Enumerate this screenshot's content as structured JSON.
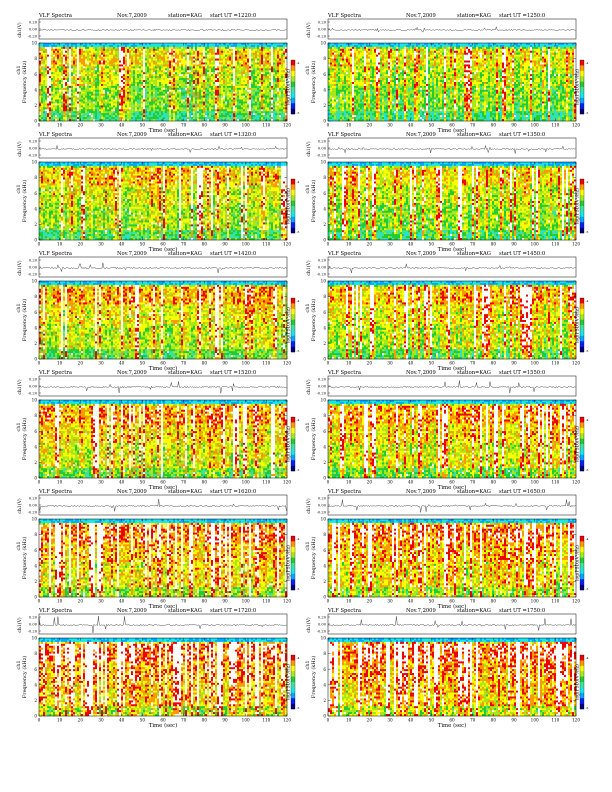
{
  "chart_data": [
    {
      "type": "heatmap",
      "title": "VLF Spectra",
      "date": "Nov.7,2009",
      "station": "station=KAG",
      "start": "start  UT  =1220:0",
      "waveform_ylabel": "ch1(V)",
      "waveform_ticks": [
        "0.20",
        "0.00",
        "-0.20"
      ],
      "ylabel": "Frequency (kHz)",
      "ylabel_prefix": "ch1",
      "ylim": [
        0,
        10
      ],
      "yticks": [
        0,
        2,
        4,
        6,
        8,
        10
      ],
      "xlabel": "Time (sec)",
      "xlim": [
        0,
        120
      ],
      "xticks": [
        0,
        10,
        20,
        30,
        40,
        50,
        60,
        70,
        80,
        90,
        100,
        110,
        120
      ],
      "colorbar_label": "log(PSD)(V²/Hz)",
      "colorbar_ticks": [
        "-4",
        "-5"
      ]
    },
    {
      "type": "heatmap",
      "title": "VLF Spectra",
      "date": "Nov.7,2009",
      "station": "station=KAG",
      "start": "start  UT  =1250:0",
      "waveform_ylabel": "ch1(V)",
      "waveform_ticks": [
        "0.20",
        "0.00",
        "-0.20"
      ],
      "ylabel": "Frequency (kHz)",
      "ylabel_prefix": "ch1",
      "ylim": [
        0,
        10
      ],
      "yticks": [
        0,
        2,
        4,
        6,
        8,
        10
      ],
      "xlabel": "Time (sec)",
      "xlim": [
        0,
        120
      ],
      "xticks": [
        0,
        10,
        20,
        30,
        40,
        50,
        60,
        70,
        80,
        90,
        100,
        110,
        120
      ],
      "colorbar_label": "log(PSD)(V²/Hz)",
      "colorbar_ticks": [
        "-4",
        "-5"
      ]
    },
    {
      "type": "heatmap",
      "title": "VLF Spectra",
      "date": "Nov.7,2009",
      "station": "station=KAG",
      "start": "start  UT  =1320:0",
      "waveform_ylabel": "ch1(V)",
      "waveform_ticks": [
        "0.20",
        "0.00",
        "-0.20"
      ],
      "ylabel": "Frequency (kHz)",
      "ylabel_prefix": "ch1",
      "ylim": [
        0,
        10
      ],
      "yticks": [
        0,
        2,
        4,
        6,
        8,
        10
      ],
      "xlabel": "Time (sec)",
      "xlim": [
        0,
        120
      ],
      "xticks": [
        0,
        10,
        20,
        30,
        40,
        50,
        60,
        70,
        80,
        90,
        100,
        110,
        120
      ],
      "colorbar_label": "log(PSD)(V²/Hz)",
      "colorbar_ticks": [
        "-4",
        "-5"
      ]
    },
    {
      "type": "heatmap",
      "title": "VLF Spectra",
      "date": "Nov.7,2009",
      "station": "station=KAG",
      "start": "start  UT  =1350:0",
      "waveform_ylabel": "ch1(V)",
      "waveform_ticks": [
        "0.20",
        "0.00",
        "-0.20"
      ],
      "ylabel": "Frequency (kHz)",
      "ylabel_prefix": "ch1",
      "ylim": [
        0,
        10
      ],
      "yticks": [
        0,
        2,
        4,
        6,
        8,
        10
      ],
      "xlabel": "Time (sec)",
      "xlim": [
        0,
        120
      ],
      "xticks": [
        0,
        10,
        20,
        30,
        40,
        50,
        60,
        70,
        80,
        90,
        100,
        110,
        120
      ],
      "colorbar_label": "log(PSD)(V²/Hz)",
      "colorbar_ticks": [
        "-4",
        "-5"
      ]
    },
    {
      "type": "heatmap",
      "title": "VLF Spectra",
      "date": "Nov.7,2009",
      "station": "station=KAG",
      "start": "start  UT  =1420:0",
      "waveform_ylabel": "ch1(V)",
      "waveform_ticks": [
        "0.20",
        "0.00",
        "-0.20"
      ],
      "ylabel": "Frequency (kHz)",
      "ylabel_prefix": "ch1",
      "ylim": [
        0,
        10
      ],
      "yticks": [
        0,
        2,
        4,
        6,
        8,
        10
      ],
      "xlabel": "Time (sec)",
      "xlim": [
        0,
        120
      ],
      "xticks": [
        0,
        10,
        20,
        30,
        40,
        50,
        60,
        70,
        80,
        90,
        100,
        110,
        120
      ],
      "colorbar_label": "log(PSD)(V²/Hz)",
      "colorbar_ticks": [
        "-4",
        "-5"
      ]
    },
    {
      "type": "heatmap",
      "title": "VLF Spectra",
      "date": "Nov.7,2009",
      "station": "station=KAG",
      "start": "start  UT  =1450:0",
      "waveform_ylabel": "ch1(V)",
      "waveform_ticks": [
        "0.20",
        "0.00",
        "-0.20"
      ],
      "ylabel": "Frequency (kHz)",
      "ylabel_prefix": "ch1",
      "ylim": [
        0,
        10
      ],
      "yticks": [
        0,
        2,
        4,
        6,
        8,
        10
      ],
      "xlabel": "Time (sec)",
      "xlim": [
        0,
        120
      ],
      "xticks": [
        0,
        10,
        20,
        30,
        40,
        50,
        60,
        70,
        80,
        90,
        100,
        110,
        120
      ],
      "colorbar_label": "log(PSD)(V²/Hz)",
      "colorbar_ticks": [
        "-4",
        "-5"
      ]
    },
    {
      "type": "heatmap",
      "title": "VLF Spectra",
      "date": "Nov.7,2009",
      "station": "station=KAG",
      "start": "start  UT  =1520:0",
      "waveform_ylabel": "ch1(V)",
      "waveform_ticks": [
        "0.20",
        "0.00",
        "-0.20"
      ],
      "ylabel": "Frequency (kHz)",
      "ylabel_prefix": "ch1",
      "ylim": [
        0,
        10
      ],
      "yticks": [
        0,
        2,
        4,
        6,
        8,
        10
      ],
      "xlabel": "Time (sec)",
      "xlim": [
        0,
        120
      ],
      "xticks": [
        0,
        10,
        20,
        30,
        40,
        50,
        60,
        70,
        80,
        90,
        100,
        110,
        120
      ],
      "colorbar_label": "log(PSD)(V²/Hz)",
      "colorbar_ticks": [
        "-4",
        "-5"
      ]
    },
    {
      "type": "heatmap",
      "title": "VLF Spectra",
      "date": "Nov.7,2009",
      "station": "station=KAG",
      "start": "start  UT  =1550:0",
      "waveform_ylabel": "ch1(V)",
      "waveform_ticks": [
        "0.20",
        "0.00",
        "-0.20"
      ],
      "ylabel": "Frequency (kHz)",
      "ylabel_prefix": "ch1",
      "ylim": [
        0,
        10
      ],
      "yticks": [
        0,
        2,
        4,
        6,
        8,
        10
      ],
      "xlabel": "Time (sec)",
      "xlim": [
        0,
        120
      ],
      "xticks": [
        0,
        10,
        20,
        30,
        40,
        50,
        60,
        70,
        80,
        90,
        100,
        110,
        120
      ],
      "colorbar_label": "log(PSD)(V²/Hz)",
      "colorbar_ticks": [
        "-4",
        "-5"
      ]
    },
    {
      "type": "heatmap",
      "title": "VLF Spectra",
      "date": "Nov.7,2009",
      "station": "station=KAG",
      "start": "start  UT  =1620:0",
      "waveform_ylabel": "ch1(V)",
      "waveform_ticks": [
        "0.20",
        "0.00",
        "-0.20"
      ],
      "ylabel": "Frequency (kHz)",
      "ylabel_prefix": "ch1",
      "ylim": [
        0,
        10
      ],
      "yticks": [
        0,
        2,
        4,
        6,
        8,
        10
      ],
      "xlabel": "Time (sec)",
      "xlim": [
        0,
        120
      ],
      "xticks": [
        0,
        10,
        20,
        30,
        40,
        50,
        60,
        70,
        80,
        90,
        100,
        110,
        120
      ],
      "colorbar_label": "log(PSD)(V²/Hz)",
      "colorbar_ticks": [
        "-4",
        "-5"
      ]
    },
    {
      "type": "heatmap",
      "title": "VLF Spectra",
      "date": "Nov.7,2009",
      "station": "station=KAG",
      "start": "start  UT  =1650:0",
      "waveform_ylabel": "ch1(V)",
      "waveform_ticks": [
        "0.20",
        "0.00",
        "-0.20"
      ],
      "ylabel": "Frequency (kHz)",
      "ylabel_prefix": "ch1",
      "ylim": [
        0,
        10
      ],
      "yticks": [
        0,
        2,
        4,
        6,
        8,
        10
      ],
      "xlabel": "Time (sec)",
      "xlim": [
        0,
        120
      ],
      "xticks": [
        0,
        10,
        20,
        30,
        40,
        50,
        60,
        70,
        80,
        90,
        100,
        110,
        120
      ],
      "colorbar_label": "log(PSD)(V²/Hz)",
      "colorbar_ticks": [
        "-4",
        "-5"
      ]
    },
    {
      "type": "heatmap",
      "title": "VLF Spectra",
      "date": "Nov.7,2009",
      "station": "station=KAG",
      "start": "start  UT  =1720:0",
      "waveform_ylabel": "ch1(V)",
      "waveform_ticks": [
        "0.20",
        "0.00",
        "-0.20"
      ],
      "ylabel": "Frequency (kHz)",
      "ylabel_prefix": "ch1",
      "ylim": [
        0,
        10
      ],
      "yticks": [
        0,
        2,
        4,
        6,
        8,
        10
      ],
      "xlabel": "Time (sec)",
      "xlim": [
        0,
        120
      ],
      "xticks": [
        0,
        10,
        20,
        30,
        40,
        50,
        60,
        70,
        80,
        90,
        100,
        110,
        120
      ],
      "colorbar_label": "log(PSD)(V²/Hz)",
      "colorbar_ticks": [
        "-4",
        "-5"
      ]
    },
    {
      "type": "heatmap",
      "title": "VLF Spectra",
      "date": "Nov.7,2009",
      "station": "station=KAG",
      "start": "start  UT  =1750:0",
      "waveform_ylabel": "ch1(V)",
      "waveform_ticks": [
        "0.20",
        "0.00",
        "-0.20"
      ],
      "ylabel": "Frequency (kHz)",
      "ylabel_prefix": "ch1",
      "ylim": [
        0,
        10
      ],
      "yticks": [
        0,
        2,
        4,
        6,
        8,
        10
      ],
      "xlabel": "Time (sec)",
      "xlim": [
        0,
        120
      ],
      "xticks": [
        0,
        10,
        20,
        30,
        40,
        50,
        60,
        70,
        80,
        90,
        100,
        110,
        120
      ],
      "colorbar_label": "log(PSD)(V²/Hz)",
      "colorbar_ticks": [
        "-4",
        "-5"
      ]
    }
  ],
  "colormap": [
    "#00007a",
    "#0020ff",
    "#00a8ff",
    "#19e6e6",
    "#40e0a0",
    "#22cc33",
    "#a8e81a",
    "#ffff00",
    "#ff9900",
    "#ee0000",
    "#ffffff"
  ]
}
